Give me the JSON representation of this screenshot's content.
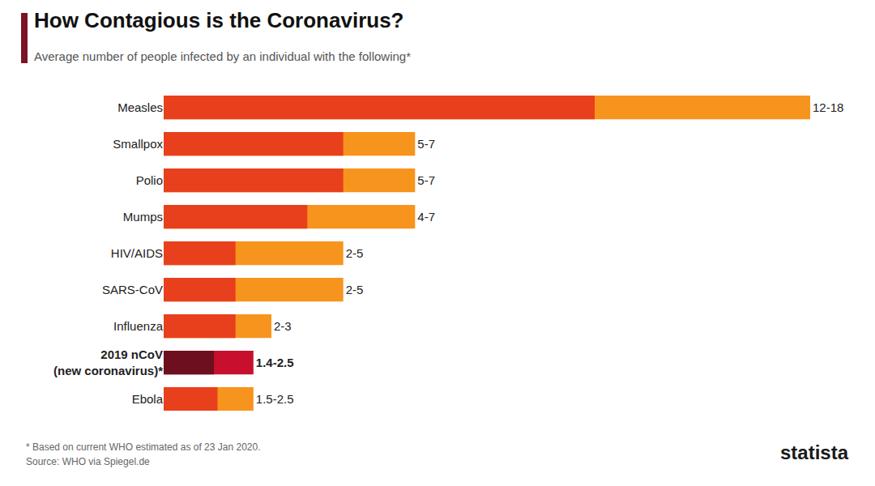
{
  "chart_data": {
    "type": "bar",
    "orientation": "horizontal",
    "title": "How Contagious is the Coronavirus?",
    "subtitle": "Average number of people infected by an individual with the following*",
    "categories": [
      "Measles",
      "Smallpox",
      "Polio",
      "Mumps",
      "HIV/AIDS",
      "SARS-CoV",
      "Influenza",
      "2019 nCoV (new coronavirus)*",
      "Ebola"
    ],
    "series": [
      {
        "values": [
          12,
          5,
          5,
          4,
          2,
          2,
          2,
          1.4,
          1.5
        ],
        "colors": [
          "#e8401c",
          "#e8401c",
          "#e8401c",
          "#e8401c",
          "#e8401c",
          "#e8401c",
          "#e8401c",
          "#6d0f1e",
          "#e8401c"
        ]
      },
      {
        "values": [
          18,
          7,
          7,
          7,
          5,
          5,
          3,
          2.5,
          2.5
        ],
        "colors": [
          "#f7941d",
          "#f7941d",
          "#f7941d",
          "#f7941d",
          "#f7941d",
          "#f7941d",
          "#f7941d",
          "#c8102e",
          "#f7941d"
        ],
        "value_labels": [
          "12-18",
          "5-7",
          "5-7",
          "4-7",
          "2-5",
          "2-5",
          "2-3",
          "1.4-2.5",
          "1.5-2.5"
        ]
      }
    ],
    "data_labels": true,
    "xlim": [
      0,
      18
    ],
    "tick_labels": false,
    "grid": false,
    "notes": [
      "* Based on current WHO estimated as of 23 Jan 2020.",
      "Source: WHO via Spiegel.de"
    ],
    "logo": "statista"
  }
}
